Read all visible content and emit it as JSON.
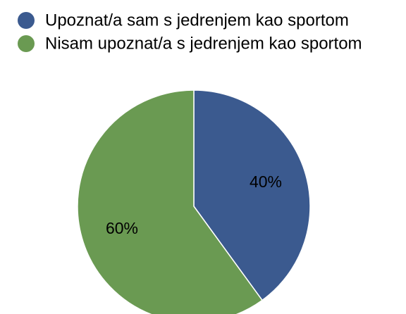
{
  "chart_data": {
    "type": "pie",
    "categories": [
      "Upoznat/a sam s jedrenjem kao sportom",
      "Nisam upoznat/a s jedrenjem kao sportom"
    ],
    "values": [
      40,
      60
    ],
    "value_labels": [
      "40%",
      "60%"
    ],
    "colors": [
      "#3b5a8f",
      "#6a9a52"
    ]
  }
}
